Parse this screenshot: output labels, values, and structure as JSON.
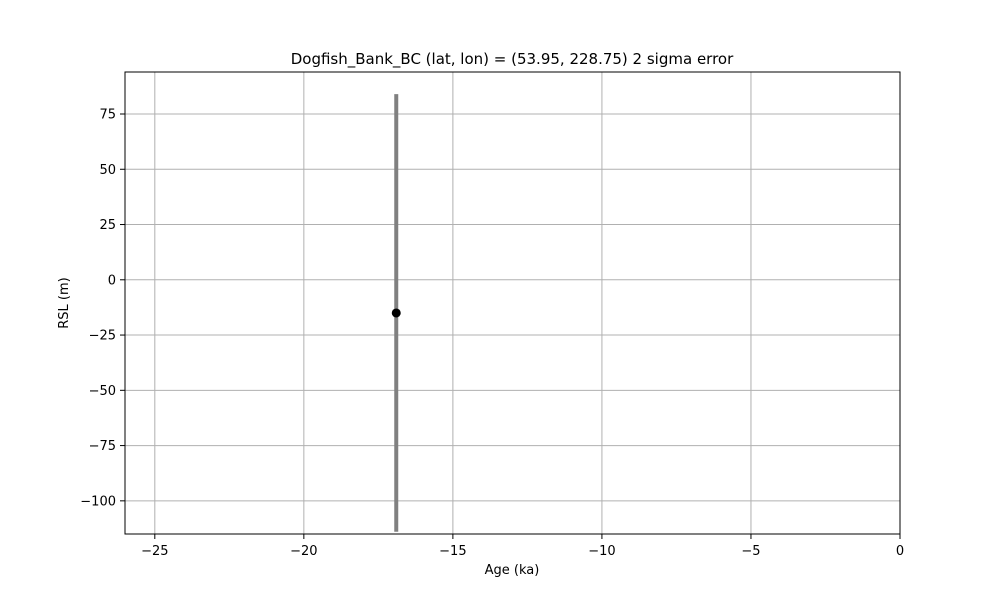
{
  "chart_data": {
    "type": "scatter",
    "title": "Dogfish_Bank_BC (lat, lon) = (53.95, 228.75)  2 sigma error",
    "xlabel": "Age (ka)",
    "ylabel": "RSL (m)",
    "xlim": [
      -26,
      0
    ],
    "ylim": [
      -115,
      94
    ],
    "xticks": [
      -25,
      -20,
      -15,
      -10,
      -5,
      0
    ],
    "yticks": [
      -100,
      -75,
      -50,
      -25,
      0,
      25,
      50,
      75
    ],
    "grid": true,
    "points": [
      {
        "x": -16.9,
        "y": -15,
        "y_err_low": -114,
        "y_err_high": 84
      }
    ],
    "colors": {
      "marker": "#000000",
      "errorbar": "#808080",
      "grid": "#b0b0b0"
    }
  }
}
